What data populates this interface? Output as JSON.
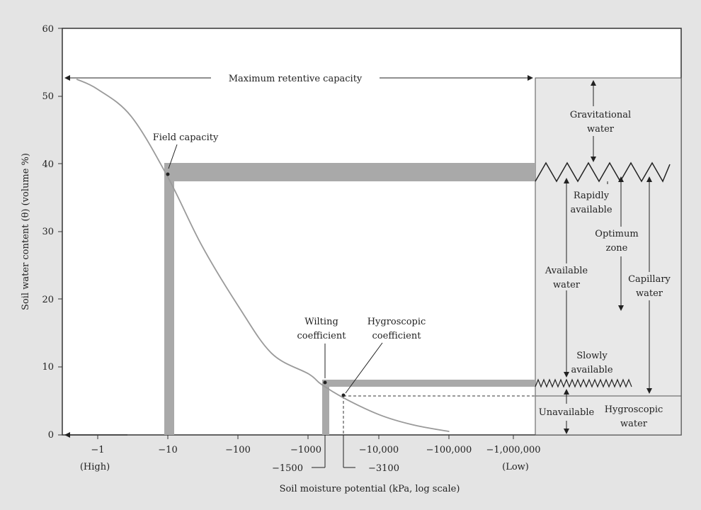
{
  "axes": {
    "y_label": "Soil water content (θ) (volume %)",
    "x_label": "Soil moisture potential (kPa, log scale)",
    "y_ticks": [
      "0",
      "10",
      "20",
      "30",
      "40",
      "50",
      "60"
    ],
    "x_ticks": [
      "−1",
      "−10",
      "−100",
      "−1000",
      "−10,000",
      "−100,000",
      "−1,000,000"
    ],
    "x_end_high": "(High)",
    "x_end_low": "(Low)",
    "extra_ticks": [
      "−1500",
      "−3100"
    ]
  },
  "annotations": {
    "max_retentive": "Maximum retentive capacity",
    "field_capacity": "Field capacity",
    "wilting_1": "Wilting",
    "wilting_2": "coefficient",
    "hygro_coef_1": "Hygroscopic",
    "hygro_coef_2": "coefficient"
  },
  "zones": {
    "gravitational_1": "Gravitational",
    "gravitational_2": "water",
    "rapidly_1": "Rapidly",
    "rapidly_2": "available",
    "optimum_1": "Optimum",
    "optimum_2": "zone",
    "available_1": "Available",
    "available_2": "water",
    "capillary_1": "Capillary",
    "capillary_2": "water",
    "slowly_1": "Slowly",
    "slowly_2": "available",
    "unavailable": "Unavailable",
    "hygroscopic_1": "Hygroscopic",
    "hygroscopic_2": "water"
  },
  "chart_data": {
    "type": "line",
    "x_scale": "log",
    "x": [
      -0.5,
      -1,
      -3,
      -10,
      -30,
      -100,
      -300,
      -1000,
      -1500,
      -3100,
      -10000,
      -30000,
      -100000
    ],
    "series": [
      {
        "values": [
          52.5,
          51,
          47,
          38,
          28,
          19,
          12,
          9,
          7.5,
          5.5,
          3,
          1.5,
          0.5
        ]
      }
    ],
    "ylim": [
      0,
      60
    ],
    "colors": {
      "curve": "#9a9a9a",
      "band": "#a9a9a9",
      "panel": "#e8e8e8",
      "frame": "#333333"
    }
  }
}
